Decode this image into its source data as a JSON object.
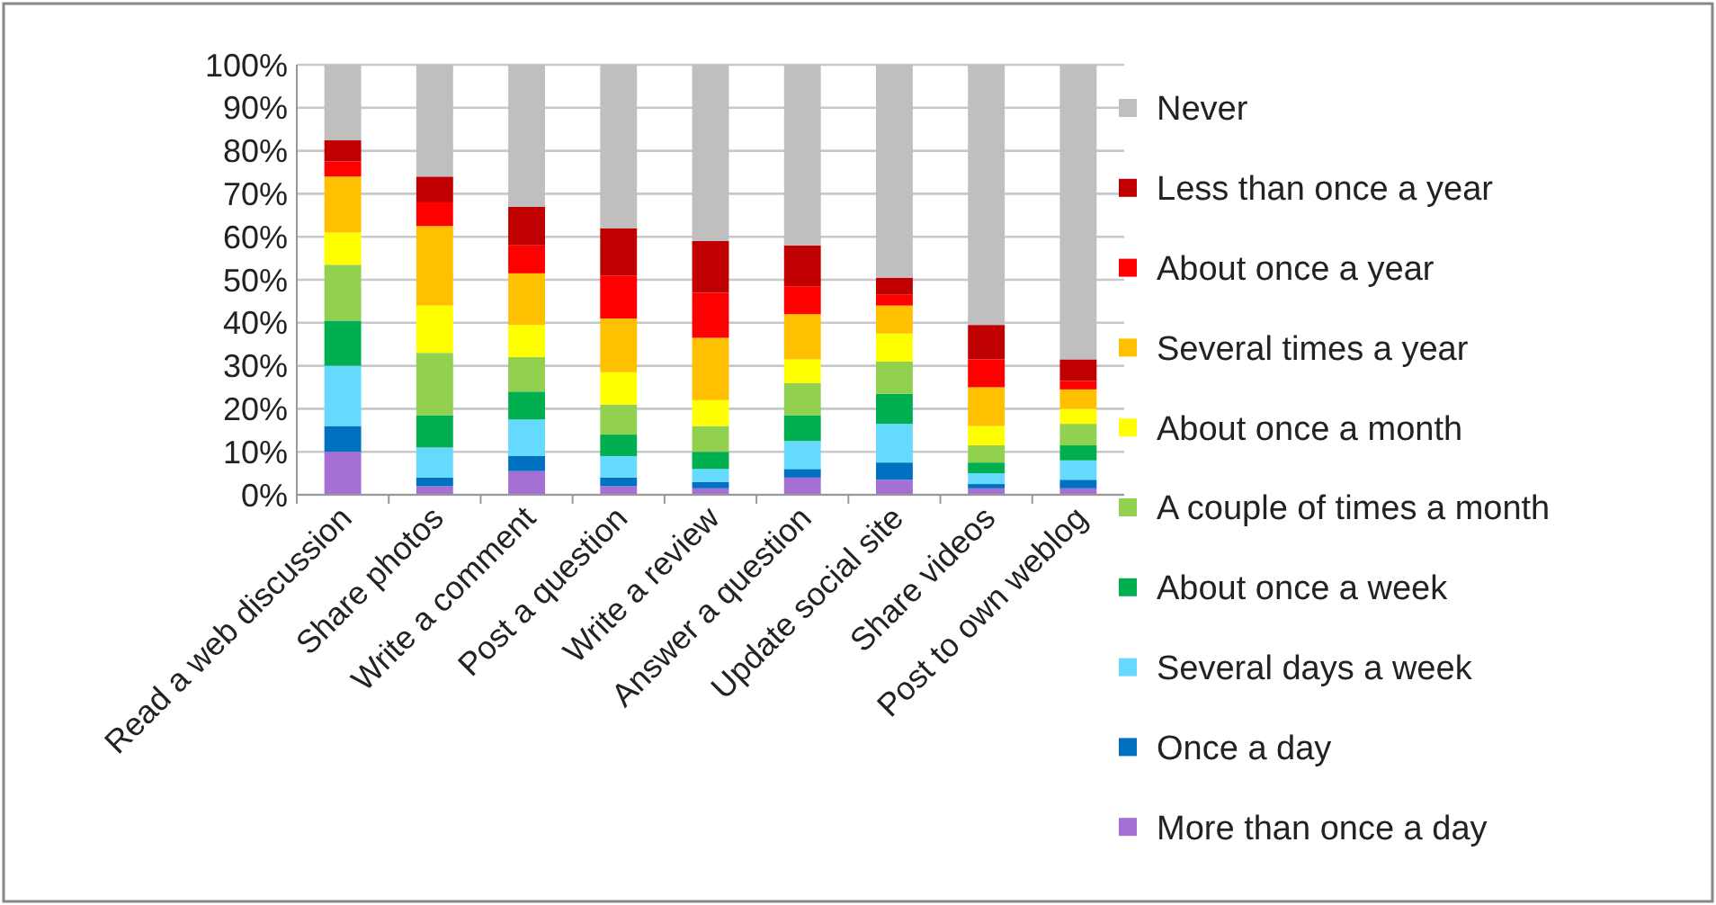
{
  "chart_data": {
    "type": "bar",
    "stacked": true,
    "categories": [
      "Read a web discussion",
      "Share photos",
      "Write a comment",
      "Post a question",
      "Write a review",
      "Answer a question",
      "Update social site",
      "Share videos",
      "Post to own weblog"
    ],
    "series": [
      {
        "name": "More than once a day",
        "color": "#a66fd4",
        "values": [
          10,
          2,
          5.5,
          2,
          1.5,
          4,
          3.5,
          1.5,
          1.5
        ]
      },
      {
        "name": "Once a day",
        "color": "#0070c0",
        "values": [
          6,
          2,
          3.5,
          2,
          1.5,
          2,
          4,
          1,
          2
        ]
      },
      {
        "name": "Several days a week",
        "color": "#66d9ff",
        "values": [
          14,
          7,
          8.5,
          5,
          3,
          6.5,
          9,
          2.5,
          4.5
        ]
      },
      {
        "name": "About once a week",
        "color": "#00b050",
        "values": [
          10.5,
          7.5,
          6.5,
          5,
          4,
          6,
          7,
          2.5,
          3.5
        ]
      },
      {
        "name": "A couple of times a month",
        "color": "#92d050",
        "values": [
          13,
          14.5,
          8,
          7,
          6,
          7.5,
          7.5,
          4,
          5
        ]
      },
      {
        "name": "About once a month",
        "color": "#ffff00",
        "values": [
          7.5,
          11,
          7.5,
          7.5,
          6,
          5.5,
          6.5,
          4.5,
          3.5
        ]
      },
      {
        "name": "Several times a year",
        "color": "#ffc000",
        "values": [
          13,
          18.5,
          12,
          12.5,
          14.5,
          10.5,
          6.5,
          9,
          4.5
        ]
      },
      {
        "name": "About once a year",
        "color": "#ff0000",
        "values": [
          3.5,
          5.5,
          6.5,
          10,
          10.5,
          6.5,
          2.5,
          6.5,
          2
        ]
      },
      {
        "name": "Less than once a year",
        "color": "#c00000",
        "values": [
          5,
          6,
          9,
          11,
          12,
          9.5,
          4,
          8,
          5
        ]
      },
      {
        "name": "Never",
        "color": "#bfbfbf",
        "values": [
          17.5,
          26,
          33,
          38,
          41,
          42,
          49.5,
          60.5,
          68.5
        ]
      }
    ],
    "ylim": [
      0,
      100
    ],
    "yticks": [
      {
        "value": 0,
        "label": "0%"
      },
      {
        "value": 10,
        "label": "10%"
      },
      {
        "value": 20,
        "label": "20%"
      },
      {
        "value": 30,
        "label": "30%"
      },
      {
        "value": 40,
        "label": "40%"
      },
      {
        "value": 50,
        "label": "50%"
      },
      {
        "value": 60,
        "label": "60%"
      },
      {
        "value": 70,
        "label": "70%"
      },
      {
        "value": 80,
        "label": "80%"
      },
      {
        "value": 90,
        "label": "90%"
      },
      {
        "value": 100,
        "label": "100%"
      }
    ],
    "grid": "y",
    "legend": "right"
  }
}
